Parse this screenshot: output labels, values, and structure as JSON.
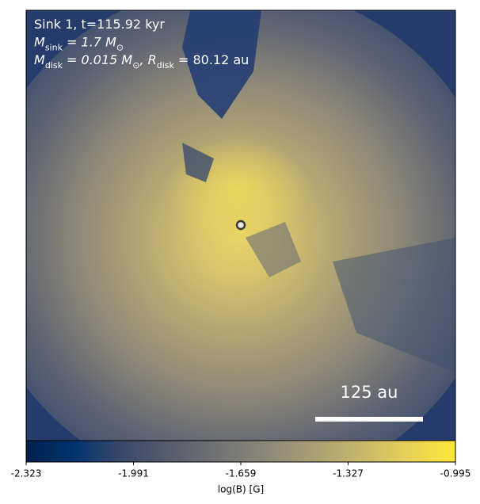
{
  "chart_data": {
    "type": "image",
    "annotation_lines": [
      [
        {
          "text": "Sink 1, t=115.92 kyr"
        }
      ],
      [
        {
          "text": "M"
        },
        {
          "text": "sink",
          "sub": true
        },
        {
          "text": " = 1.7 M"
        },
        {
          "text": "⊙",
          "sub": true
        }
      ],
      [
        {
          "text": "M"
        },
        {
          "text": "disk",
          "sub": true
        },
        {
          "text": " = 0.015 M"
        },
        {
          "text": "⊙",
          "sub": true
        },
        {
          "text": ", R"
        },
        {
          "text": "disk",
          "sub": true
        },
        {
          "text": " = 80.12 au"
        }
      ]
    ],
    "scale_bar_label": "125 au",
    "colorbar": {
      "label": "log(B) [G]",
      "lim": [
        -2.323,
        -0.995
      ],
      "ticks": [
        -2.323,
        -1.991,
        -1.659,
        -1.327,
        -0.995
      ]
    }
  }
}
